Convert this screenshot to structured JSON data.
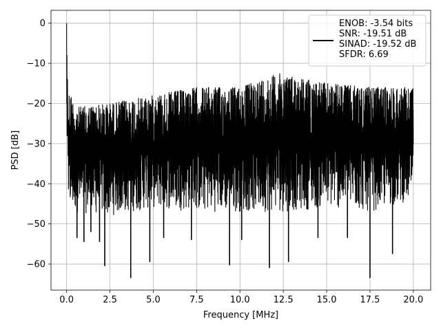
{
  "chart_data": {
    "type": "line",
    "title": "",
    "xlabel": "Frequency [MHz]",
    "ylabel": "PSD [dB]",
    "xlim": [
      -0.9,
      21.0
    ],
    "ylim": [
      -66.5,
      3.2
    ],
    "grid": true,
    "legend_position": "top-right",
    "x_ticks": [
      0.0,
      2.5,
      5.0,
      7.5,
      10.0,
      12.5,
      15.0,
      17.5,
      20.0
    ],
    "x_tick_labels": [
      "0.0",
      "2.5",
      "5.0",
      "7.5",
      "10.0",
      "12.5",
      "15.0",
      "17.5",
      "20.0"
    ],
    "y_ticks": [
      0,
      -10,
      -20,
      -30,
      -40,
      -50,
      -60
    ],
    "y_tick_labels": [
      "0",
      "−10",
      "−20",
      "−30",
      "−40",
      "−50",
      "−60"
    ],
    "series": [
      {
        "color": "#000000",
        "description": "Dense noise-floor spectrum: peak at 0 dB near DC; upper envelope rises from about -21 dB to -15 dB; typical floor -25 to -40 dB; dips down to about -63 dB",
        "peak": {
          "x": 0.0,
          "y": 0.0
        },
        "upper_envelope": [
          {
            "x": 0.2,
            "y": -17
          },
          {
            "x": 0.5,
            "y": -21
          },
          {
            "x": 2.5,
            "y": -20
          },
          {
            "x": 5.0,
            "y": -18
          },
          {
            "x": 7.5,
            "y": -16
          },
          {
            "x": 10.0,
            "y": -16
          },
          {
            "x": 12.2,
            "y": -12.5
          },
          {
            "x": 15.0,
            "y": -15
          },
          {
            "x": 17.5,
            "y": -16
          },
          {
            "x": 20.0,
            "y": -16
          }
        ],
        "lower_envelope": [
          {
            "x": 0.2,
            "y": -47
          },
          {
            "x": 2.5,
            "y": -48
          },
          {
            "x": 5.0,
            "y": -46
          },
          {
            "x": 7.5,
            "y": -47
          },
          {
            "x": 10.0,
            "y": -47
          },
          {
            "x": 12.5,
            "y": -47
          },
          {
            "x": 15.0,
            "y": -46
          },
          {
            "x": 17.5,
            "y": -47
          },
          {
            "x": 20.0,
            "y": -44
          }
        ],
        "notable_dips": [
          {
            "x": 2.2,
            "y": -60.5
          },
          {
            "x": 3.7,
            "y": -63.5
          },
          {
            "x": 4.8,
            "y": -59.5
          },
          {
            "x": 9.4,
            "y": -60.3
          },
          {
            "x": 11.7,
            "y": -61.0
          },
          {
            "x": 12.8,
            "y": -59.5
          },
          {
            "x": 17.5,
            "y": -63.5
          },
          {
            "x": 18.8,
            "y": -57.5
          },
          {
            "x": 0.6,
            "y": -53.5
          },
          {
            "x": 1.0,
            "y": -54.5
          },
          {
            "x": 1.4,
            "y": -52.0
          },
          {
            "x": 1.9,
            "y": -54.5
          },
          {
            "x": 5.6,
            "y": -53.5
          },
          {
            "x": 7.2,
            "y": -54.0
          },
          {
            "x": 10.1,
            "y": -54.0
          },
          {
            "x": 14.5,
            "y": -53.5
          },
          {
            "x": 16.2,
            "y": -53.5
          }
        ]
      }
    ],
    "legend": {
      "lines": [
        "ENOB: -3.54 bits",
        "SNR: -19.51 dB",
        "SINAD: -19.52 dB",
        "SFDR: 6.69"
      ]
    }
  }
}
